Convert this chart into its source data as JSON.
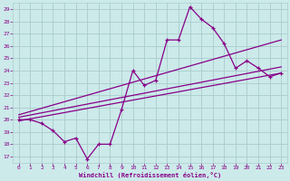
{
  "xlabel": "Windchill (Refroidissement éolien,°C)",
  "bg_color": "#cceaea",
  "line_color": "#880088",
  "grid_color": "#aacccc",
  "xlim": [
    -0.5,
    23.5
  ],
  "ylim": [
    16.5,
    29.5
  ],
  "xticks": [
    0,
    1,
    2,
    3,
    4,
    5,
    6,
    7,
    8,
    9,
    10,
    11,
    12,
    13,
    14,
    15,
    16,
    17,
    18,
    19,
    20,
    21,
    22,
    23
  ],
  "yticks": [
    17,
    18,
    19,
    20,
    21,
    22,
    23,
    24,
    25,
    26,
    27,
    28,
    29
  ],
  "zigzag_x": [
    0,
    1,
    2,
    3,
    4,
    5,
    6,
    7,
    8,
    9,
    10,
    11,
    12,
    13,
    14,
    15,
    16,
    17,
    18,
    19,
    20,
    21,
    22,
    23
  ],
  "zigzag_y": [
    20.0,
    20.0,
    19.7,
    19.1,
    18.2,
    18.5,
    16.8,
    18.0,
    18.0,
    20.8,
    24.0,
    22.8,
    23.2,
    26.5,
    26.5,
    29.2,
    28.2,
    27.5,
    26.2,
    24.2,
    24.8,
    24.2,
    23.5,
    23.8
  ],
  "line1_x": [
    0,
    23
  ],
  "line1_y": [
    19.9,
    23.8
  ],
  "line2_x": [
    0,
    23
  ],
  "line2_y": [
    20.2,
    24.3
  ],
  "line3_x": [
    0,
    23
  ],
  "line3_y": [
    20.4,
    26.5
  ]
}
